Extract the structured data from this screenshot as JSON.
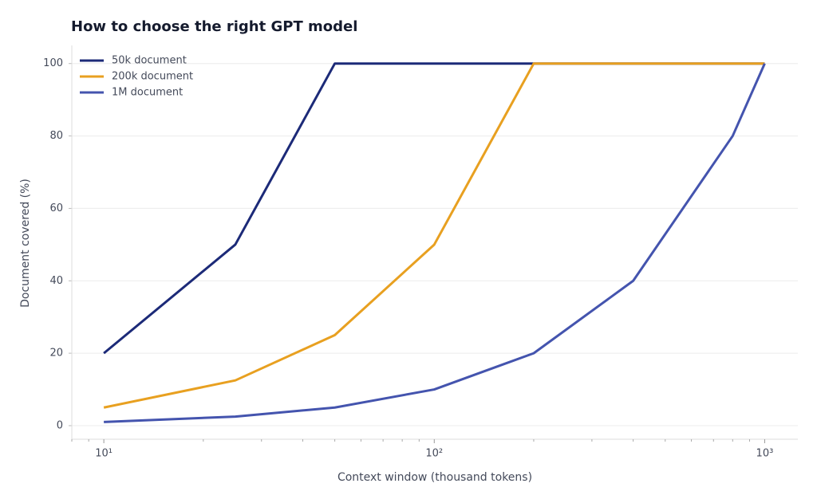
{
  "chart_data": {
    "type": "line",
    "title": "How to choose the right GPT model",
    "x_label": "Context window (thousand tokens)",
    "y_label": "Document covered (%)",
    "x": [
      10,
      25,
      50,
      100,
      200,
      400,
      800,
      1000
    ],
    "series": [
      {
        "name": "50k document",
        "color": "#1c2a78",
        "values": [
          20,
          50,
          100,
          100,
          100,
          100,
          100,
          100
        ]
      },
      {
        "name": "200k document",
        "color": "#e8a020",
        "values": [
          5,
          12.5,
          25,
          50,
          100,
          100,
          100,
          100
        ]
      },
      {
        "name": "1M document",
        "color": "#4454ae",
        "values": [
          1,
          2.5,
          5,
          10,
          20,
          40,
          80,
          100
        ]
      }
    ],
    "xscale": "log",
    "xlim": [
      8,
      1260
    ],
    "xticks": [
      {
        "value": 10,
        "label": "10¹"
      },
      {
        "value": 100,
        "label": "10²"
      },
      {
        "value": 1000,
        "label": "10³"
      }
    ],
    "xminorticks": [
      8,
      9,
      20,
      30,
      40,
      50,
      60,
      70,
      80,
      90,
      200,
      300,
      400,
      500,
      600,
      700,
      800,
      900
    ],
    "ylim": [
      -3.75,
      105
    ],
    "yticks": [
      0,
      20,
      40,
      60,
      80,
      100
    ],
    "grid": true,
    "legend": "upper-left"
  }
}
